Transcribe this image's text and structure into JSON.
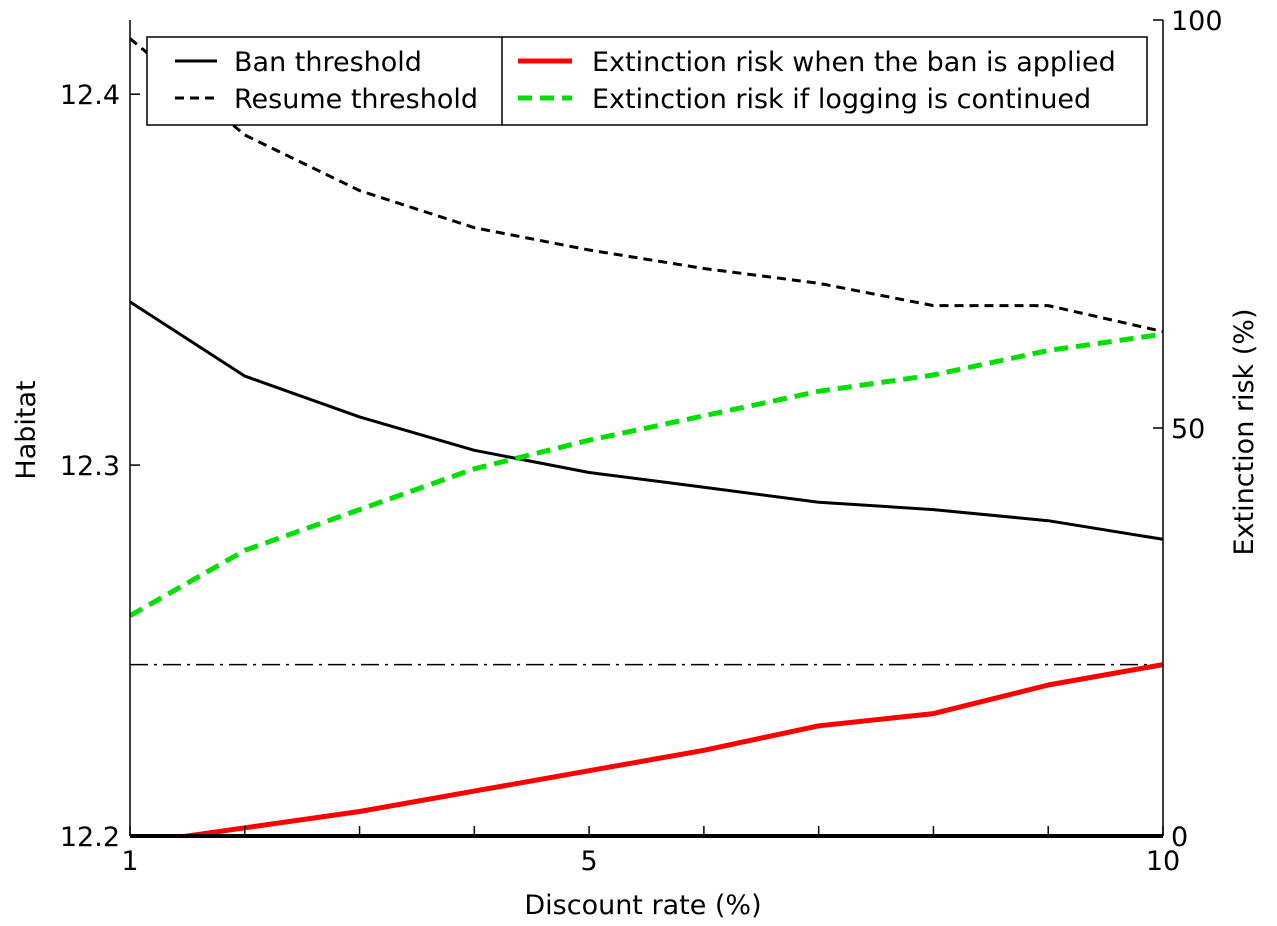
{
  "chart_data": {
    "type": "line",
    "x": [
      1,
      2,
      3,
      4,
      5,
      6,
      7,
      8,
      9,
      10
    ],
    "xlabel": "Discount rate (%)",
    "ylabel_left": "Habitat",
    "ylabel_right": "Extinction risk (%)",
    "xlim": [
      1,
      10
    ],
    "ylim_left": [
      12.2,
      12.42
    ],
    "ylim_right": [
      0,
      100
    ],
    "x_ticks": [
      1,
      2,
      3,
      4,
      5,
      6,
      7,
      8,
      9,
      10
    ],
    "x_tick_labels": [
      "1",
      "",
      "",
      "",
      "5",
      "",
      "",
      "",
      "",
      "10"
    ],
    "y_left_ticks": [
      12.2,
      12.3,
      12.4
    ],
    "y_left_tick_labels": [
      "12.2",
      "12.3",
      "12.4"
    ],
    "y_right_ticks": [
      0,
      50,
      100
    ],
    "y_right_tick_labels": [
      "0",
      "50",
      "100"
    ],
    "grid": false,
    "legend_placement": "top",
    "reference_line": {
      "axis": "right",
      "y": 21,
      "style": "dash-dot",
      "color": "#000000"
    },
    "series": [
      {
        "name": "Ban threshold",
        "axis": "left",
        "color": "#000000",
        "style": "solid",
        "values": [
          12.344,
          12.324,
          12.313,
          12.304,
          12.298,
          12.294,
          12.29,
          12.288,
          12.285,
          12.28
        ]
      },
      {
        "name": "Resume threshold",
        "axis": "left",
        "color": "#000000",
        "style": "dashed",
        "values": [
          12.415,
          12.389,
          12.374,
          12.364,
          12.358,
          12.353,
          12.349,
          12.343,
          12.343,
          12.336
        ]
      },
      {
        "name": "Extinction risk when the ban is applied",
        "axis": "right",
        "color": "#ff0000",
        "style": "solid",
        "values": [
          -1,
          1,
          3,
          5.5,
          8,
          10.5,
          13.5,
          15,
          18.5,
          21
        ]
      },
      {
        "name": "Extinction risk if logging is continued",
        "axis": "right",
        "color": "#00e000",
        "style": "dashed",
        "values": [
          27,
          35,
          40,
          45,
          48.5,
          51.5,
          54.5,
          56.5,
          59.5,
          61.5
        ]
      }
    ]
  }
}
